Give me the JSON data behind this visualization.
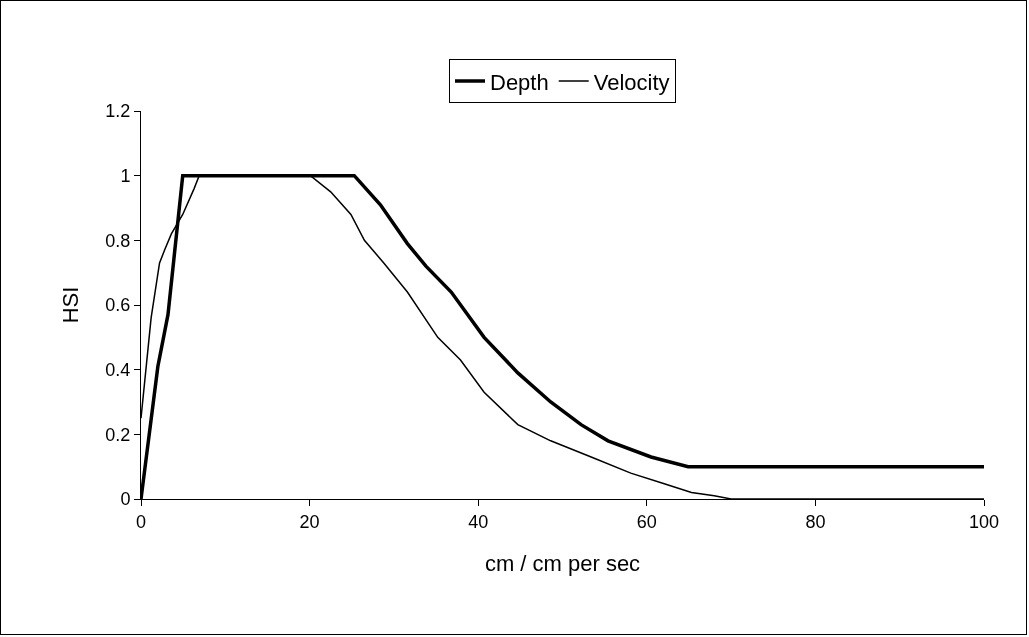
{
  "chart_data": {
    "type": "line",
    "xlabel": "cm / cm per sec",
    "ylabel": "HSI",
    "xlim": [
      0,
      100
    ],
    "xticks": [
      0,
      20,
      40,
      60,
      80,
      100
    ],
    "ylim": [
      0,
      1.2
    ],
    "yticks": [
      0,
      0.2,
      0.4,
      0.6,
      0.8,
      1,
      1.2
    ],
    "grid": false,
    "legend": "top",
    "marker": "none",
    "line_style": "solid",
    "series": [
      {
        "name": "Depth",
        "color": "#000000",
        "x": [
          0,
          2,
          3.2,
          4.95,
          5.5,
          25.3,
          28.4,
          31.6,
          33.8,
          36.8,
          40.7,
          44.7,
          48.6,
          52.2,
          55.4,
          60.5,
          64.9,
          68.4,
          100
        ],
        "values": [
          0,
          0.41,
          0.57,
          1,
          1,
          1,
          0.91,
          0.79,
          0.72,
          0.64,
          0.5,
          0.39,
          0.3,
          0.23,
          0.18,
          0.13,
          0.1,
          0.1,
          0.1
        ]
      },
      {
        "name": "Velocity",
        "color": "#000000",
        "x": [
          0,
          1.2,
          2.2,
          2.8,
          3.6,
          4.95,
          6.3,
          6.9,
          20.1,
          22.5,
          24.9,
          26.5,
          28.8,
          31.6,
          35.2,
          37.9,
          40.7,
          44.7,
          48.6,
          53.4,
          58.1,
          61.7,
          65.3,
          68,
          70,
          100
        ],
        "values": [
          0.25,
          0.56,
          0.73,
          0.77,
          0.82,
          0.88,
          0.96,
          1,
          1,
          0.95,
          0.88,
          0.8,
          0.73,
          0.64,
          0.5,
          0.43,
          0.33,
          0.23,
          0.18,
          0.13,
          0.08,
          0.05,
          0.02,
          0.01,
          0,
          0
        ]
      }
    ]
  }
}
